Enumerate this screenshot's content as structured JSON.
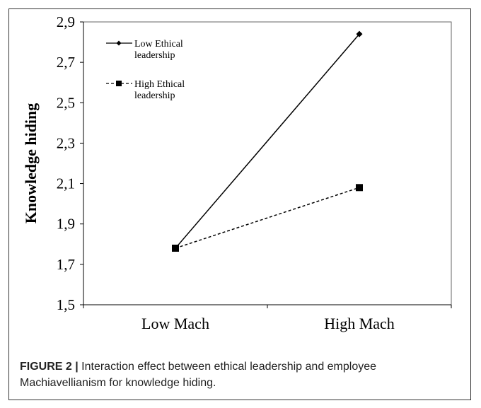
{
  "chart_data": {
    "type": "line",
    "ylabel": "Knowledge hiding",
    "xlabel": "",
    "categories": [
      "Low Mach",
      "High Mach"
    ],
    "ylim": [
      1.5,
      2.9
    ],
    "yticks": [
      "1,5",
      "1,7",
      "1,9",
      "2,1",
      "2,3",
      "2,5",
      "2,7",
      "2,9"
    ],
    "yticks_values": [
      1.5,
      1.7,
      1.9,
      2.1,
      2.3,
      2.5,
      2.7,
      2.9
    ],
    "grid": false,
    "legend_position": "top-left",
    "series": [
      {
        "name_line1": "Low Ethical",
        "name_line2": "leadership",
        "values": [
          1.78,
          2.84
        ],
        "line_style": "solid",
        "marker": "diamond"
      },
      {
        "name_line1": "High Ethical",
        "name_line2": "leadership",
        "values": [
          1.78,
          2.08
        ],
        "line_style": "dashed",
        "marker": "square"
      }
    ]
  },
  "caption": {
    "label": "FIGURE 2 |",
    "text_line1": " Interaction effect between ethical leadership and employee",
    "text_line2": "Machiavellianism for knowledge hiding."
  }
}
